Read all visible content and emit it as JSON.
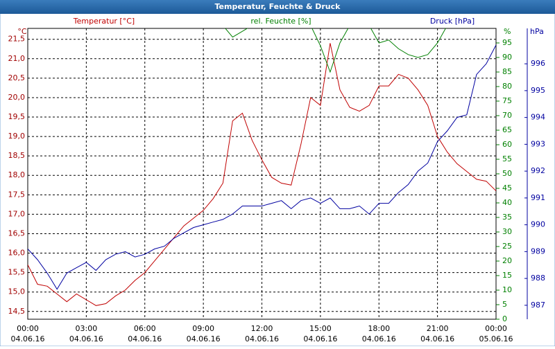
{
  "chart_data": {
    "type": "line",
    "title": "Temperatur, Feuchte & Druck",
    "x": [
      0,
      0.5,
      1,
      1.5,
      2,
      2.5,
      3,
      3.5,
      4,
      4.5,
      5,
      5.5,
      6,
      6.5,
      7,
      7.5,
      8,
      8.5,
      9,
      9.5,
      10,
      10.5,
      11,
      11.5,
      12,
      12.5,
      13,
      13.5,
      14,
      14.5,
      15,
      15.5,
      16,
      16.5,
      17,
      17.5,
      18,
      18.5,
      19,
      19.5,
      20,
      20.5,
      21,
      21.5,
      22,
      22.5,
      23,
      23.5,
      24
    ],
    "xlim": [
      0,
      24
    ],
    "xticks": [
      {
        "value": 0,
        "label": "00:00",
        "date": "04.06.16"
      },
      {
        "value": 3,
        "label": "03:00",
        "date": "04.06.16"
      },
      {
        "value": 6,
        "label": "06:00",
        "date": "04.06.16"
      },
      {
        "value": 9,
        "label": "09:00",
        "date": "04.06.16"
      },
      {
        "value": 12,
        "label": "12:00",
        "date": "04.06.16"
      },
      {
        "value": 15,
        "label": "15:00",
        "date": "04.06.16"
      },
      {
        "value": 18,
        "label": "18:00",
        "date": "04.06.16"
      },
      {
        "value": 21,
        "label": "21:00",
        "date": "04.06.16"
      },
      {
        "value": 24,
        "label": "00:00",
        "date": "05.06.16"
      }
    ],
    "ylim": [
      14.3,
      21.78
    ],
    "y_unit": "°C",
    "yticks": [
      {
        "value": 14.5,
        "label": "14,5"
      },
      {
        "value": 15,
        "label": "15,0"
      },
      {
        "value": 15.5,
        "label": "15,5"
      },
      {
        "value": 16,
        "label": "16,0"
      },
      {
        "value": 16.5,
        "label": "16,5"
      },
      {
        "value": 17,
        "label": "17,0"
      },
      {
        "value": 17.5,
        "label": "17,5"
      },
      {
        "value": 18,
        "label": "18,0"
      },
      {
        "value": 18.5,
        "label": "18,5"
      },
      {
        "value": 19,
        "label": "19,0"
      },
      {
        "value": 19.5,
        "label": "19,5"
      },
      {
        "value": 20,
        "label": "20,0"
      },
      {
        "value": 20.5,
        "label": "20,5"
      },
      {
        "value": 21,
        "label": "21,0"
      },
      {
        "value": 21.5,
        "label": "21,5"
      }
    ],
    "y2lim": [
      0,
      100
    ],
    "y2_unit": "%",
    "y2ticks": [
      0,
      5,
      10,
      15,
      20,
      25,
      30,
      35,
      40,
      45,
      50,
      55,
      60,
      65,
      70,
      75,
      80,
      85,
      90,
      95
    ],
    "y3lim": [
      986.48,
      997.32
    ],
    "y3_unit": "hPa",
    "y3ticks": [
      987,
      988,
      989,
      990,
      991,
      992,
      993,
      994,
      995,
      996
    ],
    "grid": true,
    "series": [
      {
        "name": "Temperatur [°C]",
        "color": "#c00000",
        "values": [
          15.7,
          15.2,
          15.15,
          14.95,
          14.75,
          14.95,
          14.8,
          14.65,
          14.7,
          14.9,
          15.05,
          15.3,
          15.5,
          15.8,
          16.1,
          16.4,
          16.7,
          16.9,
          17.1,
          17.4,
          17.8,
          19.4,
          19.6,
          18.9,
          18.4,
          17.95,
          17.8,
          17.75,
          18.8,
          20.0,
          19.8,
          21.4,
          20.2,
          19.75,
          19.65,
          19.8,
          20.3,
          20.3,
          20.6,
          20.5,
          20.2,
          19.8,
          19.0,
          18.6,
          18.3,
          18.1,
          17.9,
          17.85,
          17.6
        ]
      },
      {
        "name": "rel. Feuchte [%]",
        "color": "#008000",
        "axis": "y2",
        "values": [
          null,
          null,
          null,
          null,
          null,
          null,
          null,
          null,
          null,
          null,
          null,
          null,
          null,
          null,
          null,
          null,
          null,
          null,
          null,
          null,
          101,
          97,
          99,
          101,
          null,
          null,
          null,
          null,
          null,
          101,
          94,
          85,
          95,
          101,
          null,
          101,
          95,
          96,
          93,
          91,
          90,
          91,
          95,
          101,
          null,
          null,
          null,
          null,
          null
        ]
      },
      {
        "name": "Druck [hPa]",
        "color": "#0000a0",
        "axis": "y3",
        "values": [
          989.1,
          988.7,
          988.2,
          987.6,
          988.2,
          988.4,
          988.6,
          988.3,
          988.7,
          988.9,
          989.0,
          988.8,
          988.9,
          989.1,
          989.2,
          989.5,
          989.7,
          989.9,
          990.0,
          990.1,
          990.2,
          990.4,
          990.7,
          990.7,
          990.7,
          990.8,
          990.9,
          990.6,
          990.9,
          991.0,
          990.8,
          991.0,
          990.6,
          990.6,
          990.7,
          990.4,
          990.8,
          990.8,
          991.2,
          991.5,
          992.0,
          992.3,
          993.1,
          993.5,
          994.0,
          994.1,
          995.6,
          996.0,
          996.7
        ]
      }
    ]
  }
}
